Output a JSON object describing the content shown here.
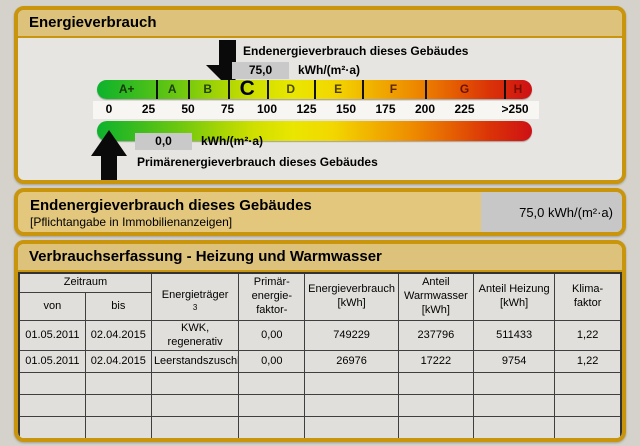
{
  "panel1": {
    "title": "Energieverbrauch"
  },
  "energy_scale": {
    "current_class": "C",
    "end_marker": {
      "label": "Endenergieverbrauch dieses Gebäudes",
      "value": "75,0",
      "value_num": 75,
      "unit": "kWh/(m²·a)"
    },
    "primary_marker": {
      "label": "Primärenergieverbrauch dieses Gebäudes",
      "value": "0,0",
      "value_num": 0,
      "unit": "kWh/(m²·a)"
    },
    "bands": [
      {
        "label": "A+",
        "max": 30,
        "letter_color": "#17380a"
      },
      {
        "label": "A",
        "max": 50,
        "letter_color": "#1d4008"
      },
      {
        "label": "B",
        "max": 75,
        "letter_color": "#234405"
      },
      {
        "label": "C",
        "max": 100,
        "letter_color": "#000000"
      },
      {
        "label": "D",
        "max": 130,
        "letter_color": "#4c4a00"
      },
      {
        "label": "E",
        "max": 160,
        "letter_color": "#4f3f00"
      },
      {
        "label": "F",
        "max": 200,
        "letter_color": "#5c2600"
      },
      {
        "label": "G",
        "max": 250,
        "letter_color": "#6e1200"
      },
      {
        "label": "H",
        "max": null,
        "letter_color": "#7a0d00"
      }
    ],
    "ticks": [
      {
        "label": "0",
        "value": 0
      },
      {
        "label": "25",
        "value": 25
      },
      {
        "label": "50",
        "value": 50
      },
      {
        "label": "75",
        "value": 75
      },
      {
        "label": "100",
        "value": 100
      },
      {
        "label": "125",
        "value": 125
      },
      {
        "label": "150",
        "value": 150
      },
      {
        "label": "175",
        "value": 175
      },
      {
        "label": "200",
        "value": 200
      },
      {
        "label": "225",
        "value": 225
      },
      {
        "label": ">250",
        "value": 257
      }
    ]
  },
  "panel2": {
    "title": "Endenergieverbrauch dieses Gebäudes",
    "subtitle": "[Pflichtangabe in Immobilienanzeigen]",
    "value": "75,0 kWh/(m²·a)"
  },
  "panel3": {
    "title": "Verbrauchserfassung - Heizung und Warmwasser"
  },
  "table": {
    "headers": {
      "zeitraum": "Zeitraum",
      "von": "von",
      "bis": "bis",
      "energietraeger": "Energieträger",
      "energietraeger_sup": "3",
      "primaerenergiefaktor": "Primär-\nenergie-\nfaktor-",
      "energieverbrauch": "Energieverbrauch\n[kWh]",
      "anteil_warmwasser": "Anteil\nWarmwasser\n[kWh]",
      "anteil_heizung": "Anteil Heizung\n[kWh]",
      "klimafaktor": "Klima-\nfaktor"
    },
    "rows": [
      [
        "01.05.2011",
        "02.04.2015",
        "KWK, regenerativ",
        "0,00",
        "749229",
        "237796",
        "511433",
        "1,22"
      ],
      [
        "01.05.2011",
        "02.04.2015",
        "Leerstandszuschlag",
        "0,00",
        "26976",
        "17222",
        "9754",
        "1,22"
      ],
      [
        "",
        "",
        "",
        "",
        "",
        "",
        "",
        ""
      ],
      [
        "",
        "",
        "",
        "",
        "",
        "",
        "",
        ""
      ],
      [
        "",
        "",
        "",
        "",
        "",
        "",
        "",
        ""
      ],
      [
        "",
        "",
        "",
        "",
        "",
        "",
        "",
        ""
      ]
    ]
  },
  "colors": {
    "page_bg": "#d5d2cb",
    "panel_border": "#c8950c",
    "header_bg": "#ddc27c",
    "panel_body_bg": "#e6e5e1",
    "panel2_bg": "#e2c77d",
    "value_box_bg": "#c9c9c9",
    "tick_strip_bg": "#f7f6f2",
    "table_line": "#3f3f3f",
    "scale_gradient": "linear-gradient(90deg,#0db22d 0%,#3fbd1c 10%,#73c90e 20%,#a4d405 28%,#cfdf00 36%,#e9e600 45%,#f2d800 54%,#f1b200 63%,#ee8e00 72%,#e66202 81%,#db3407 90%,#ce1015 100%)"
  }
}
